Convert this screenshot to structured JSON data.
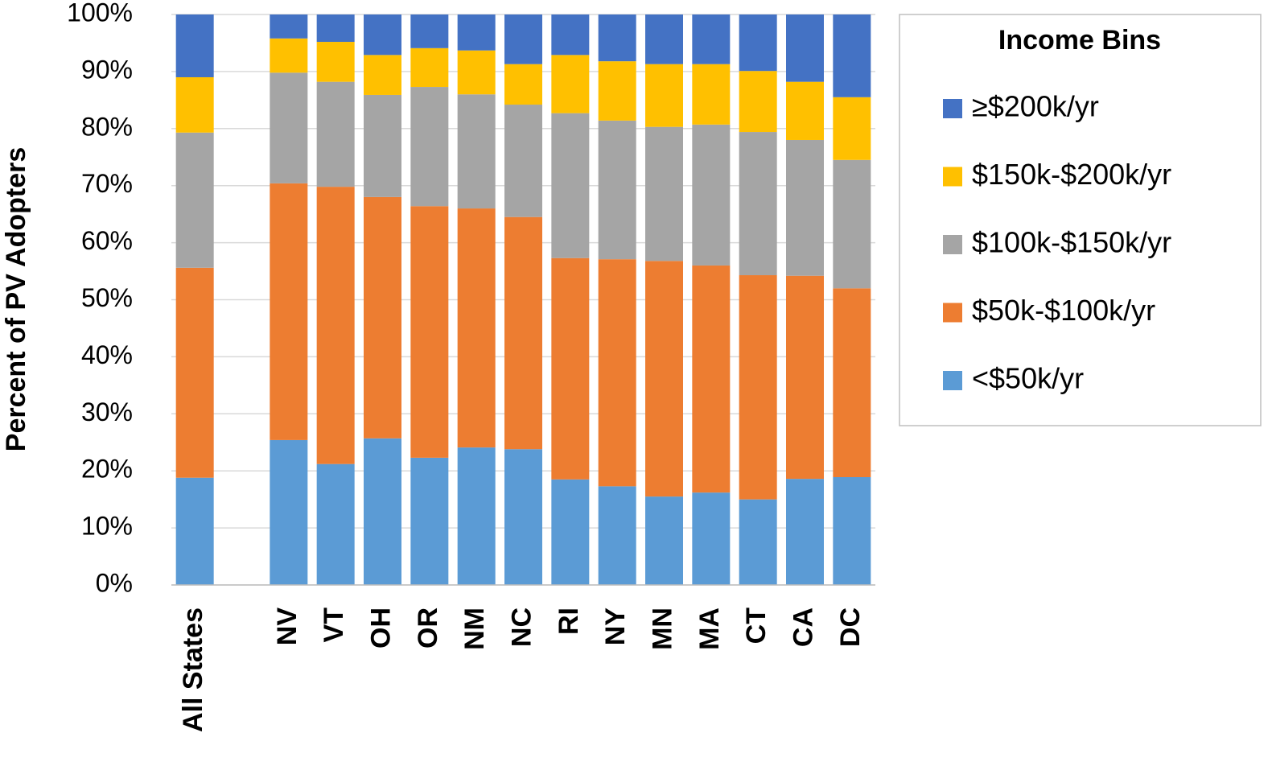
{
  "chart_data": {
    "type": "stacked_bar",
    "y_label": "Percent of PV Adopters",
    "legend_title": "Income Bins",
    "categories": [
      "All States",
      null,
      "NV",
      "VT",
      "OH",
      "OR",
      "NM",
      "NC",
      "RI",
      "NY",
      "MN",
      "MA",
      "CT",
      "CA",
      "DC"
    ],
    "series": [
      {
        "name": "<$50k/yr",
        "color": "#5b9bd5",
        "values": [
          18.8,
          null,
          25.4,
          21.2,
          25.7,
          22.3,
          24.1,
          23.8,
          18.5,
          17.3,
          15.5,
          16.2,
          15.0,
          18.6,
          18.9
        ]
      },
      {
        "name": "$50k-$100k/yr",
        "color": "#ed7d31",
        "values": [
          36.8,
          null,
          45.0,
          48.6,
          42.3,
          44.1,
          41.9,
          40.7,
          38.8,
          39.8,
          41.3,
          39.8,
          39.3,
          35.6,
          33.1
        ]
      },
      {
        "name": "$100k-$150k/yr",
        "color": "#a5a5a5",
        "values": [
          23.7,
          null,
          19.4,
          18.4,
          17.9,
          20.9,
          20.0,
          19.7,
          25.4,
          24.3,
          23.5,
          24.7,
          25.1,
          23.8,
          22.5
        ]
      },
      {
        "name": "$150k-$200k/yr",
        "color": "#ffc000",
        "values": [
          9.7,
          null,
          6.0,
          7.0,
          7.0,
          6.8,
          7.7,
          7.1,
          10.2,
          10.4,
          11.0,
          10.6,
          10.7,
          10.2,
          11.0
        ]
      },
      {
        "name": "≥$200k/yr",
        "color": "#4472c4",
        "values": [
          11.0,
          null,
          4.2,
          4.8,
          7.1,
          5.9,
          6.3,
          8.7,
          7.1,
          8.2,
          8.7,
          8.7,
          9.9,
          11.8,
          14.5
        ]
      }
    ],
    "ylim": [
      0,
      100
    ],
    "yticks": [
      {
        "value": 0,
        "label": "0%"
      },
      {
        "value": 10,
        "label": "10%"
      },
      {
        "value": 20,
        "label": "20%"
      },
      {
        "value": 30,
        "label": "30%"
      },
      {
        "value": 40,
        "label": "40%"
      },
      {
        "value": 50,
        "label": "50%"
      },
      {
        "value": 60,
        "label": "60%"
      },
      {
        "value": 70,
        "label": "70%"
      },
      {
        "value": 80,
        "label": "80%"
      },
      {
        "value": 90,
        "label": "90%"
      },
      {
        "value": 100,
        "label": "100%"
      }
    ],
    "grid": true,
    "legend_position": "right"
  }
}
